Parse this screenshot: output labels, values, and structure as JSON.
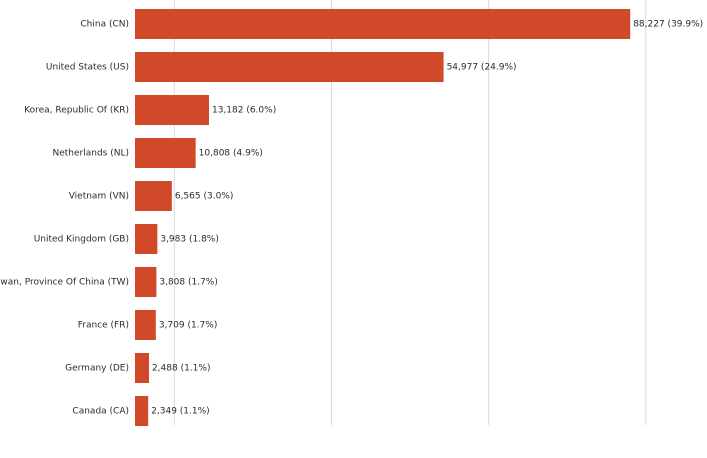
{
  "chart_data": {
    "type": "bar",
    "orientation": "horizontal",
    "categories": [
      "China (CN)",
      "United States (US)",
      "Korea, Republic Of (KR)",
      "Netherlands (NL)",
      "Vietnam (VN)",
      "United Kingdom (GB)",
      "Taiwan, Province Of China (TW)",
      "France (FR)",
      "Germany (DE)",
      "Canada (CA)"
    ],
    "values": [
      88227,
      54977,
      13182,
      10808,
      6565,
      3983,
      3808,
      3709,
      2488,
      2349
    ],
    "value_labels": [
      "88,227 (39.9%)",
      "54,977 (24.9%)",
      "13,182 (6.0%)",
      "10,808 (4.9%)",
      "6,565 (3.0%)",
      "3,983 (1.8%)",
      "3,808 (1.7%)",
      "3,709 (1.7%)",
      "2,488 (1.1%)",
      "2,349 (1.1%)"
    ],
    "xlim": [
      0,
      90000
    ],
    "gridlines": [
      7000,
      35000,
      63000,
      91000
    ],
    "grid": true,
    "bar_color": "#d04a2a",
    "grid_color": "#d9d9d9",
    "title": "",
    "xlabel": "",
    "ylabel": ""
  }
}
